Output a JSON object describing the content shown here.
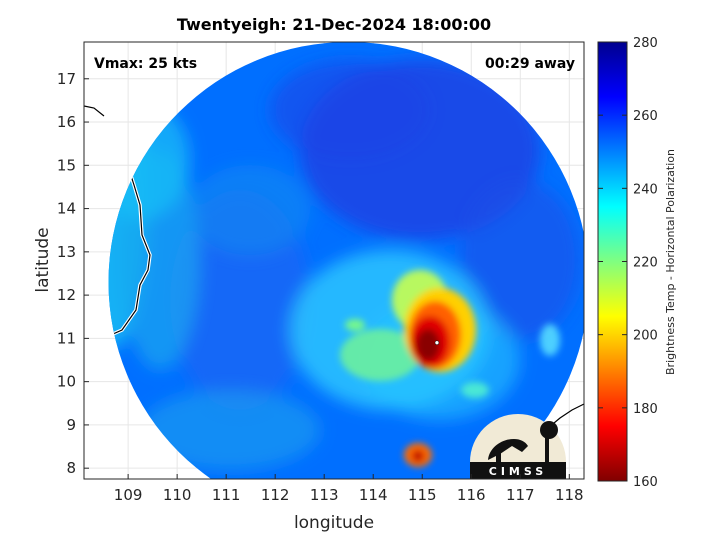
{
  "chart_data": {
    "type": "heatmap",
    "title": "Twentyeigh: 21-Dec-2024 18:00:00",
    "xlabel": "longitude",
    "ylabel": "latitude",
    "xlim": [
      108.1,
      118.3
    ],
    "ylim": [
      7.75,
      17.85
    ],
    "x_ticks": [
      109,
      110,
      111,
      112,
      113,
      114,
      115,
      116,
      117,
      118
    ],
    "y_ticks": [
      8,
      9,
      10,
      11,
      12,
      13,
      14,
      15,
      16,
      17
    ],
    "grid": true,
    "colorbar": {
      "label": "Brightness Temp - Horizontal Polarization",
      "min": 160,
      "max": 280,
      "ticks": [
        160,
        180,
        200,
        220,
        240,
        260,
        280
      ],
      "colormap": "jet",
      "stops": [
        "#800000",
        "#ff0000",
        "#ff8000",
        "#ffff00",
        "#80ff80",
        "#00ffff",
        "#0080ff",
        "#0000ff",
        "#00008f"
      ]
    },
    "swath": {
      "center": [
        113.5,
        12.3
      ],
      "radius_deg": 4.9
    },
    "storm_center": [
      115.3,
      10.9
    ],
    "annotations": {
      "intensity": "Vmax: 25 kts",
      "time_offset": "00:29 away"
    },
    "background_temp": 252,
    "features": [
      {
        "name": "deep convection core",
        "lon": 115.1,
        "lat": 11.0,
        "min_temp": 168
      },
      {
        "name": "secondary cell",
        "lon": 115.1,
        "lat": 8.4,
        "min_temp": 172
      },
      {
        "name": "rain band",
        "lon": 114.3,
        "lat": 10.8,
        "min_temp": 214
      }
    ]
  },
  "logo": {
    "text": "CIMSS"
  }
}
